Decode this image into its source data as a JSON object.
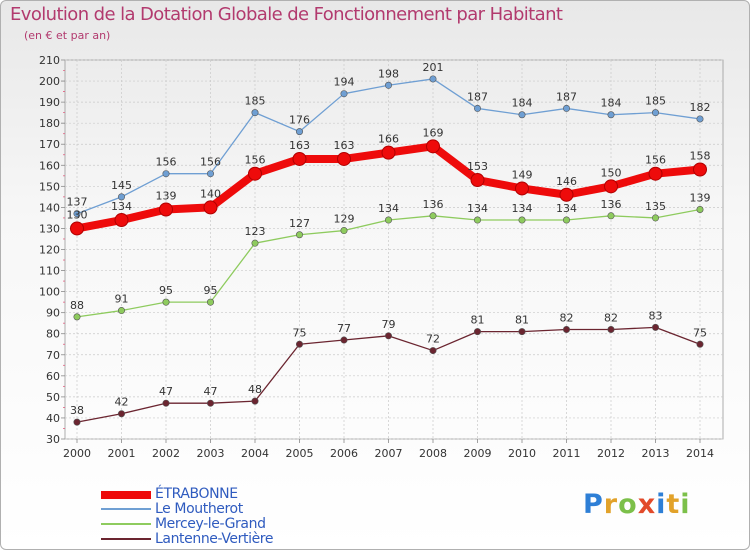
{
  "chart_data": {
    "type": "line",
    "title": "Evolution de la Dotation Globale de Fonctionnement par Habitant",
    "subtitle": "(en € et par an)",
    "xlabel": "",
    "ylabel": "",
    "ylim": [
      30,
      210
    ],
    "yticks": [
      30,
      40,
      50,
      60,
      70,
      80,
      90,
      100,
      110,
      120,
      130,
      140,
      150,
      160,
      170,
      180,
      190,
      200,
      210
    ],
    "categories": [
      "2000",
      "2001",
      "2002",
      "2003",
      "2004",
      "2005",
      "2006",
      "2007",
      "2008",
      "2009",
      "2010",
      "2011",
      "2012",
      "2013",
      "2014"
    ],
    "grid": true,
    "legend_position": "bottom-left",
    "series": [
      {
        "name": "Le Moutherot",
        "color": "#6f9fd3",
        "values": [
          137,
          145,
          156,
          156,
          185,
          176,
          194,
          198,
          201,
          187,
          184,
          187,
          184,
          185,
          182
        ]
      },
      {
        "name": "Mercey-le-Grand",
        "color": "#8ecb5e",
        "values": [
          88,
          91,
          95,
          95,
          123,
          127,
          129,
          134,
          136,
          134,
          134,
          134,
          136,
          135,
          139
        ]
      },
      {
        "name": "Lantenne-Vertière",
        "color": "#6b2530",
        "values": [
          38,
          42,
          47,
          47,
          48,
          75,
          77,
          79,
          72,
          81,
          81,
          82,
          82,
          83,
          75
        ]
      },
      {
        "name": "ÉTRABONNE",
        "color": "#ee0b0b",
        "values": [
          130,
          134,
          139,
          140,
          156,
          163,
          163,
          166,
          169,
          153,
          149,
          146,
          150,
          156,
          158
        ]
      }
    ]
  },
  "legend": {
    "items": [
      {
        "label": "ÉTRABONNE",
        "color": "#ee0b0b"
      },
      {
        "label": "Le Moutherot",
        "color": "#6f9fd3"
      },
      {
        "label": "Mercey-le-Grand",
        "color": "#8ecb5e"
      },
      {
        "label": "Lantenne-Vertière",
        "color": "#6b2530"
      }
    ]
  },
  "logo": {
    "letters": [
      "P",
      "r",
      "o",
      "x",
      "i",
      "t",
      "i"
    ],
    "colors": [
      "#2e7fd6",
      "#e2a22a",
      "#7cc04a",
      "#e24a2a",
      "#2e7fd6",
      "#e2a22a",
      "#7cc04a"
    ]
  }
}
